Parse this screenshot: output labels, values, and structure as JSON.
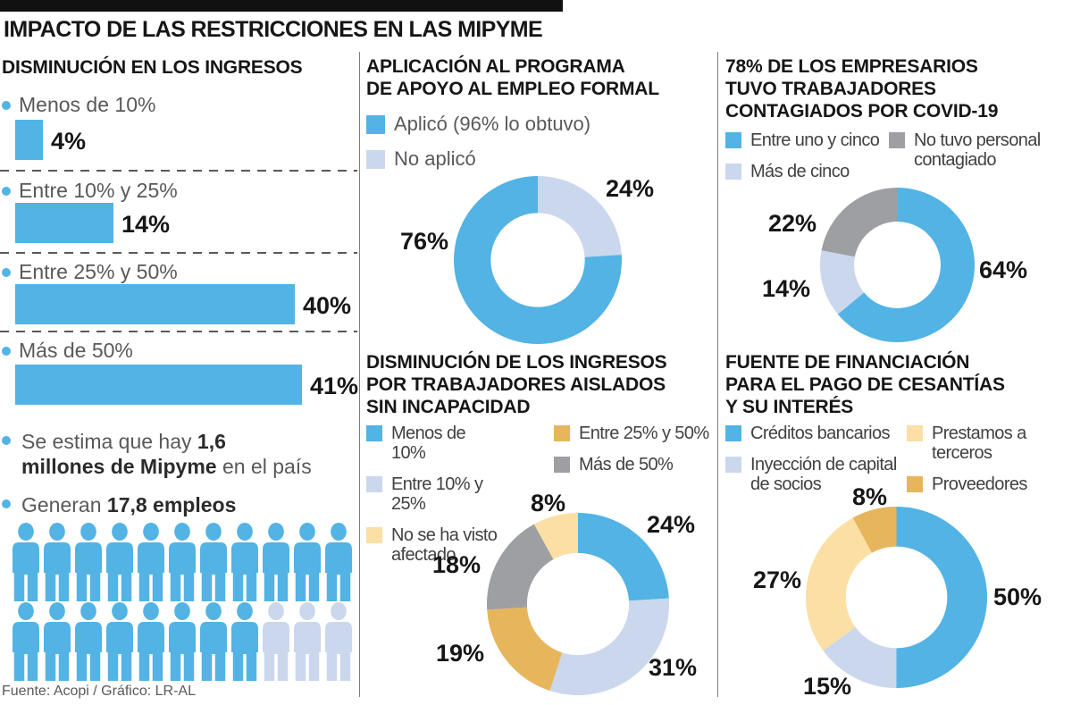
{
  "page": {
    "title": "IMPACTO DE LAS RESTRICCIONES EN LAS MIPYME",
    "source": "Fuente: Acopi / Gráfico: LR-AL"
  },
  "palette": {
    "blue": "#52b3e4",
    "pale_blue": "#cbd7ed",
    "pale_yellow": "#fbdfa4",
    "gold": "#e6b55c",
    "gray": "#9e9fa2",
    "black_bar": "#111111"
  },
  "facts": [
    {
      "pre": "Se estima que hay ",
      "bold": "1,6 millones de Mipyme",
      "post": " en el país"
    },
    {
      "pre": "Generan ",
      "bold": "17,8 empleos",
      "post": ""
    }
  ],
  "people": {
    "rows": [
      {
        "blue": 11,
        "pale": 0
      },
      {
        "blue": 8,
        "pale": 3
      }
    ]
  },
  "chart_data": [
    {
      "id": "ingresos",
      "type": "bar",
      "title": "DISMINUCIÓN EN LOS INGRESOS",
      "categories": [
        "Menos de 10%",
        "Entre 10% y 25%",
        "Entre 25% y 50%",
        "Más de 50%"
      ],
      "values": [
        4,
        14,
        40,
        41
      ],
      "value_labels": [
        "4%",
        "14%",
        "40%",
        "41%"
      ],
      "unit": "%",
      "bar_color": "#52b3e4",
      "xlim": [
        0,
        50
      ]
    },
    {
      "id": "apoyo_empleo",
      "type": "pie",
      "title": "APLICACIÓN AL PROGRAMA\nDE APOYO AL EMPLEO FORMAL",
      "legend": [
        {
          "label": "Aplicó (96% lo obtuvo)",
          "color": "#52b3e4"
        },
        {
          "label": "No aplicó",
          "color": "#cbd7ed"
        }
      ],
      "slices": [
        {
          "name": "No aplicó",
          "value": 24,
          "label": "24%",
          "color": "#cbd7ed"
        },
        {
          "name": "Aplicó (96% lo obtuvo)",
          "value": 76,
          "label": "76%",
          "color": "#52b3e4"
        }
      ]
    },
    {
      "id": "covid_contagios",
      "type": "pie",
      "title": "78% DE LOS EMPRESARIOS\nTUVO TRABAJADORES\nCONTAGIADOS POR COVID-19",
      "legend": [
        {
          "label": "Entre uno y cinco",
          "color": "#52b3e4"
        },
        {
          "label": "Más de cinco",
          "color": "#cbd7ed"
        },
        {
          "label": "No tuvo personal contagiado",
          "color": "#9e9fa2"
        }
      ],
      "slices": [
        {
          "name": "Entre uno y cinco",
          "value": 64,
          "label": "64%",
          "color": "#52b3e4"
        },
        {
          "name": "Más de cinco",
          "value": 14,
          "label": "14%",
          "color": "#cbd7ed"
        },
        {
          "name": "No tuvo personal contagiado",
          "value": 22,
          "label": "22%",
          "color": "#9e9fa2"
        }
      ]
    },
    {
      "id": "trabajadores_aislados",
      "type": "pie",
      "title": "DISMINUCIÓN DE LOS INGRESOS\nPOR TRABAJADORES AISLADOS\nSIN INCAPACIDAD",
      "legend": [
        {
          "label": "Menos de 10%",
          "color": "#52b3e4"
        },
        {
          "label": "Entre 10% y 25%",
          "color": "#cbd7ed"
        },
        {
          "label": "No se ha visto afectado",
          "color": "#fbdfa4"
        },
        {
          "label": "Entre 25% y 50%",
          "color": "#e6b55c"
        },
        {
          "label": "Más de 50%",
          "color": "#9e9fa2"
        }
      ],
      "slices": [
        {
          "name": "Menos de 10%",
          "value": 24,
          "label": "24%",
          "color": "#52b3e4"
        },
        {
          "name": "Entre 10% y 25%",
          "value": 31,
          "label": "31%",
          "color": "#cbd7ed"
        },
        {
          "name": "Entre 25% y 50%",
          "value": 19,
          "label": "19%",
          "color": "#e6b55c"
        },
        {
          "name": "Más de 50%",
          "value": 18,
          "label": "18%",
          "color": "#9e9fa2"
        },
        {
          "name": "No se ha visto afectado",
          "value": 8,
          "label": "8%",
          "color": "#fbdfa4"
        }
      ]
    },
    {
      "id": "financiacion_cesantias",
      "type": "pie",
      "title": "FUENTE DE FINANCIACIÓN\nPARA EL PAGO DE CESANTÍAS\nY SU INTERÉS",
      "legend": [
        {
          "label": "Créditos bancarios",
          "color": "#52b3e4"
        },
        {
          "label": "Inyección de capital de socios",
          "color": "#cbd7ed"
        },
        {
          "label": "Prestamos a terceros",
          "color": "#fbdfa4"
        },
        {
          "label": "Proveedores",
          "color": "#e6b55c"
        }
      ],
      "slices": [
        {
          "name": "Créditos bancarios",
          "value": 50,
          "label": "50%",
          "color": "#52b3e4"
        },
        {
          "name": "Inyección de capital de socios",
          "value": 15,
          "label": "15%",
          "color": "#cbd7ed"
        },
        {
          "name": "Prestamos a terceros",
          "value": 27,
          "label": "27%",
          "color": "#fbdfa4"
        },
        {
          "name": "Proveedores",
          "value": 8,
          "label": "8%",
          "color": "#e6b55c"
        }
      ]
    }
  ]
}
